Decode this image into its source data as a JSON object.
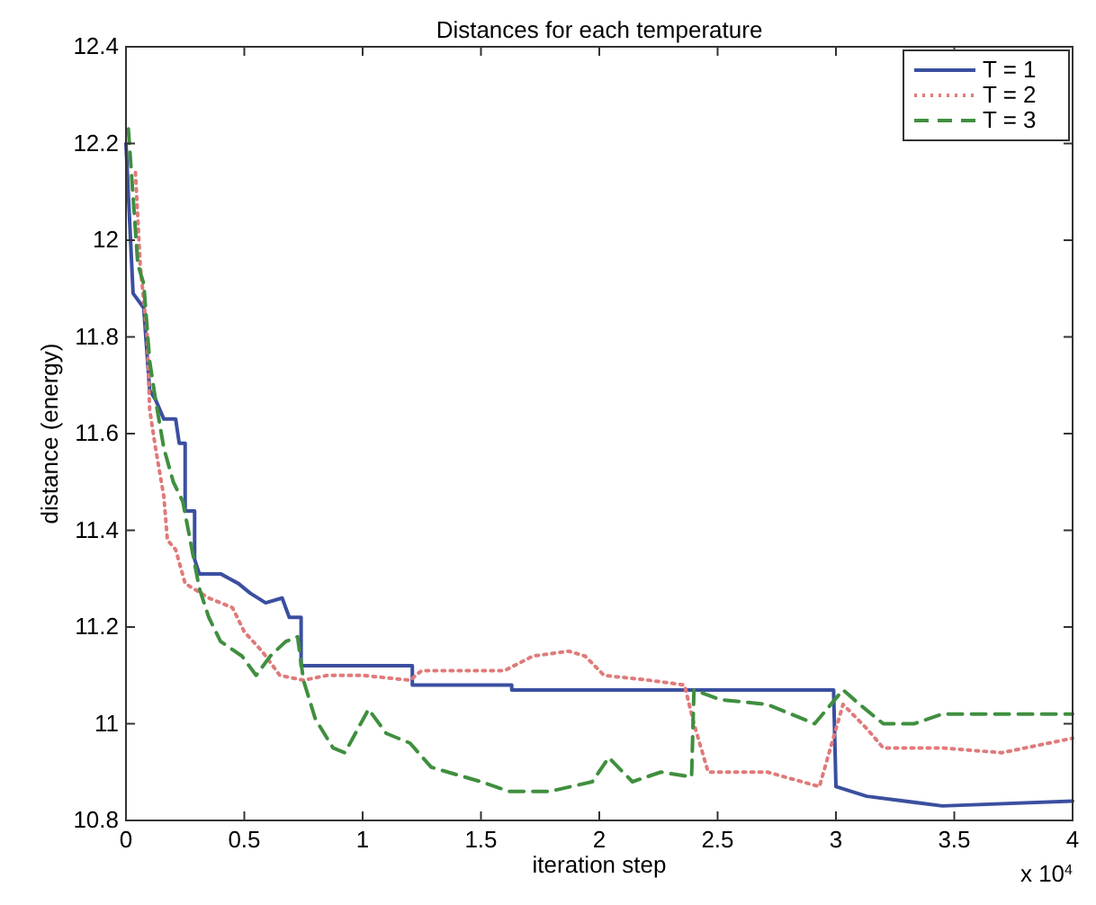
{
  "chart_data": {
    "type": "line",
    "title": "Distances for each temperature",
    "xlabel": "iteration step",
    "ylabel": "distance (energy)",
    "annotations": [
      "x 10$^{4}$"
    ],
    "xlim": [
      0,
      4
    ],
    "xticks": [
      0,
      0.5,
      1,
      1.5,
      2,
      2.5,
      3,
      3.5,
      4
    ],
    "ylim": [
      10.8,
      12.4
    ],
    "yticks": [
      10.8,
      11,
      11.2,
      11.4,
      11.6,
      11.8,
      12,
      12.2,
      12.4
    ],
    "grid": false,
    "legend": "top right",
    "series": [
      {
        "name": "T = 1",
        "color": "#3b4fa0",
        "line_style": "solid",
        "x": [
          0,
          0.03,
          0.075,
          0.1,
          0.125,
          0.16,
          0.21,
          0.225,
          0.25,
          0.25,
          0.29,
          0.29,
          0.31,
          0.4,
          0.475,
          0.525,
          0.59,
          0.66,
          0.69,
          0.74,
          0.74,
          1.21,
          1.21,
          1.63,
          1.63,
          2.99,
          3,
          3.13,
          3.45,
          4
        ],
        "values": [
          12.2,
          11.89,
          11.86,
          11.69,
          11.67,
          11.63,
          11.63,
          11.58,
          11.58,
          11.44,
          11.44,
          11.34,
          11.31,
          11.31,
          11.29,
          11.27,
          11.25,
          11.26,
          11.22,
          11.22,
          11.12,
          11.12,
          11.08,
          11.08,
          11.07,
          11.07,
          10.87,
          10.85,
          10.83,
          10.84
        ]
      },
      {
        "name": "T = 2",
        "color": "#e07a7a",
        "line_style": "dotted",
        "x": [
          0.04,
          0.06,
          0.09,
          0.1,
          0.125,
          0.16,
          0.175,
          0.21,
          0.25,
          0.35,
          0.45,
          0.5,
          0.575,
          0.65,
          0.75,
          0.85,
          1,
          1.2,
          1.25,
          1.6,
          1.72,
          1.87,
          1.94,
          2.02,
          2.21,
          2.36,
          2.4,
          2.46,
          2.71,
          2.93,
          3.03,
          3.13,
          3.2,
          3.45,
          3.7,
          4
        ],
        "values": [
          12.14,
          11.95,
          11.8,
          11.65,
          11.57,
          11.47,
          11.38,
          11.36,
          11.29,
          11.26,
          11.24,
          11.19,
          11.15,
          11.1,
          11.09,
          11.1,
          11.1,
          11.09,
          11.11,
          11.11,
          11.14,
          11.15,
          11.14,
          11.1,
          11.09,
          11.08,
          11,
          10.9,
          10.9,
          10.87,
          11.04,
          10.99,
          10.95,
          10.95,
          10.94,
          10.97
        ]
      },
      {
        "name": "T = 3",
        "color": "#3f8f3f",
        "line_style": "dashed",
        "x": [
          0.01,
          0.05,
          0.075,
          0.1,
          0.125,
          0.16,
          0.2,
          0.24,
          0.275,
          0.31,
          0.35,
          0.4,
          0.49,
          0.55,
          0.61,
          0.675,
          0.725,
          0.75,
          0.8,
          0.875,
          0.925,
          1.025,
          1.1,
          1.2,
          1.29,
          1.5,
          1.62,
          1.79,
          1.97,
          2.04,
          2.14,
          2.26,
          2.39,
          2.4,
          2.51,
          2.71,
          2.91,
          3.03,
          3.1,
          3.2,
          3.33,
          3.45,
          3.7,
          4
        ],
        "values": [
          12.23,
          11.95,
          11.91,
          11.75,
          11.67,
          11.57,
          11.5,
          11.46,
          11.37,
          11.28,
          11.22,
          11.17,
          11.14,
          11.1,
          11.14,
          11.17,
          11.18,
          11.09,
          11.01,
          10.95,
          10.94,
          11.03,
          10.98,
          10.96,
          10.91,
          10.88,
          10.86,
          10.86,
          10.88,
          10.93,
          10.88,
          10.9,
          10.89,
          11.07,
          11.05,
          11.04,
          11,
          11.07,
          11.04,
          11,
          11,
          11.02,
          11.02,
          11.02
        ]
      }
    ]
  }
}
